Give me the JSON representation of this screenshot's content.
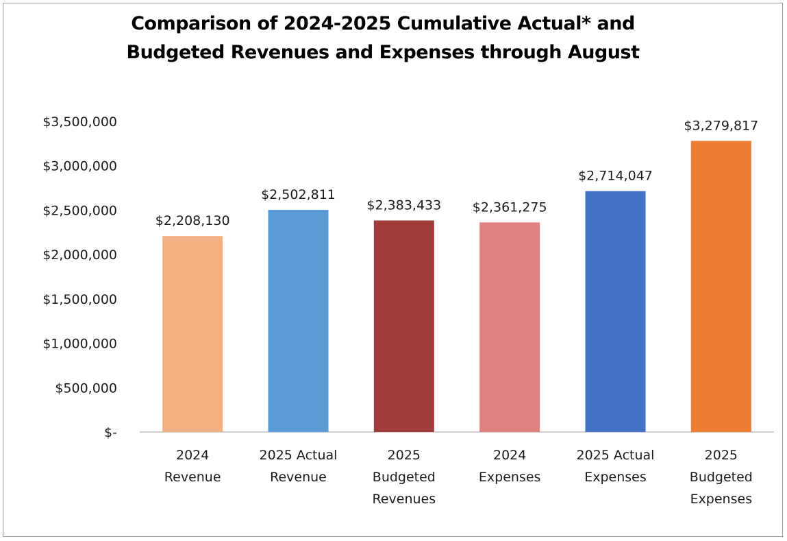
{
  "chart_data": {
    "type": "bar",
    "title_lines": [
      "Comparison of 2024-2025 Cumulative Actual* and",
      "Budgeted Revenues and Expenses through August"
    ],
    "categories": [
      [
        "2024",
        "Revenue"
      ],
      [
        "2025 Actual",
        "Revenue"
      ],
      [
        "2025",
        "Budgeted",
        "Revenues"
      ],
      [
        "2024",
        "Expenses"
      ],
      [
        "2025 Actual",
        "Expenses"
      ],
      [
        "2025",
        "Budgeted",
        "Expenses"
      ]
    ],
    "values": [
      2208130,
      2502811,
      2383433,
      2361275,
      2714047,
      3279817
    ],
    "value_labels": [
      "$2,208,130",
      "$2,502,811",
      "$2,383,433",
      "$2,361,275",
      "$2,714,047",
      "$3,279,817"
    ],
    "colors": [
      "#F4B183",
      "#5B9BD5",
      "#9E3B3B",
      "#E07F7F",
      "#4472C4",
      "#ED7D31"
    ],
    "ylim": [
      0,
      3500000
    ],
    "y_ticks": [
      0,
      500000,
      1000000,
      1500000,
      2000000,
      2500000,
      3000000,
      3500000
    ],
    "y_tick_labels": [
      "$-",
      "$500,000",
      "$1,000,000",
      "$1,500,000",
      "$2,000,000",
      "$2,500,000",
      "$3,000,000",
      "$3,500,000"
    ],
    "grid": false,
    "legend": "none",
    "xlabel": "",
    "ylabel": ""
  }
}
